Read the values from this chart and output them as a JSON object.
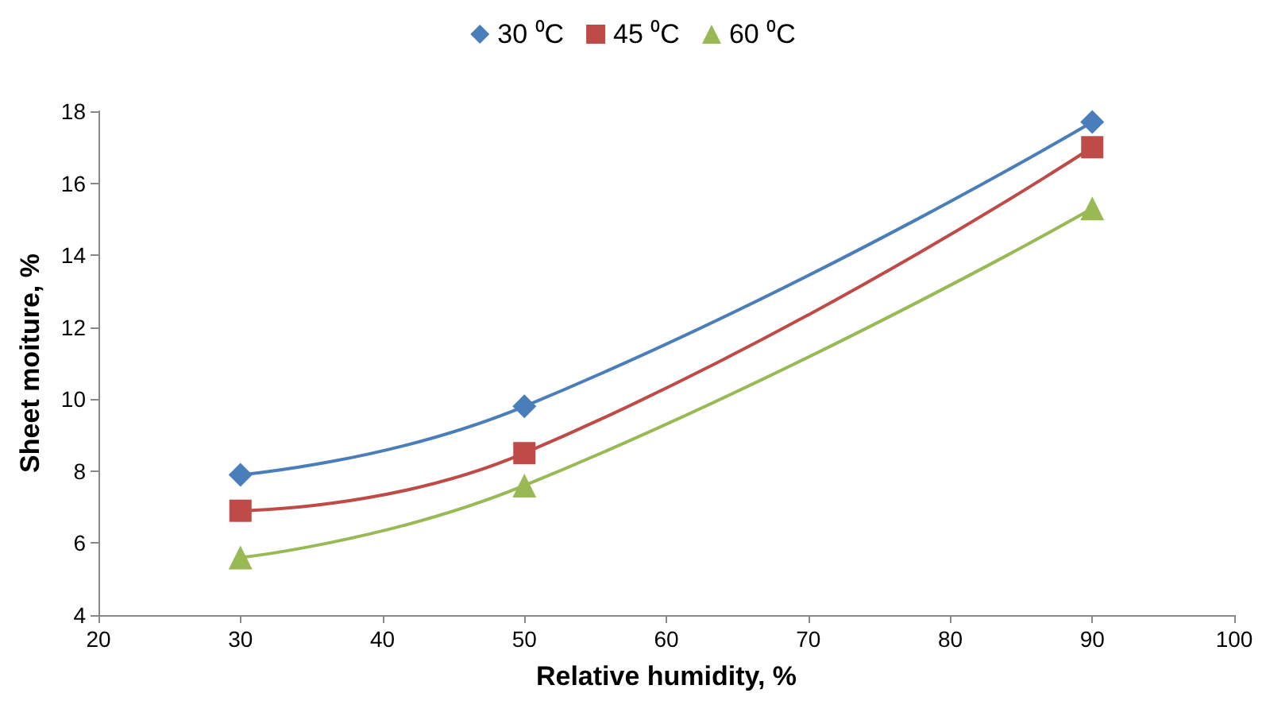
{
  "chart_data": {
    "type": "line",
    "xlabel": "Relative humidity, %",
    "ylabel": "Sheet moiture, %",
    "x": [
      30,
      50,
      90
    ],
    "series": [
      {
        "name": "30 ⁰C",
        "color": "#4a7ebb",
        "marker": "diamond",
        "values": [
          7.9,
          9.8,
          17.7
        ]
      },
      {
        "name": "45 ⁰C",
        "color": "#be4b48",
        "marker": "square",
        "values": [
          6.9,
          8.5,
          17.0
        ]
      },
      {
        "name": "60 ⁰C",
        "color": "#98b954",
        "marker": "triangle",
        "values": [
          5.6,
          7.6,
          15.3
        ]
      }
    ],
    "xlim": [
      20,
      100
    ],
    "xticks": [
      20,
      30,
      40,
      50,
      60,
      70,
      80,
      90,
      100
    ],
    "ylim": [
      4,
      18
    ],
    "yticks": [
      4,
      6,
      8,
      10,
      12,
      14,
      16,
      18
    ],
    "grid": false,
    "legend": "top"
  }
}
